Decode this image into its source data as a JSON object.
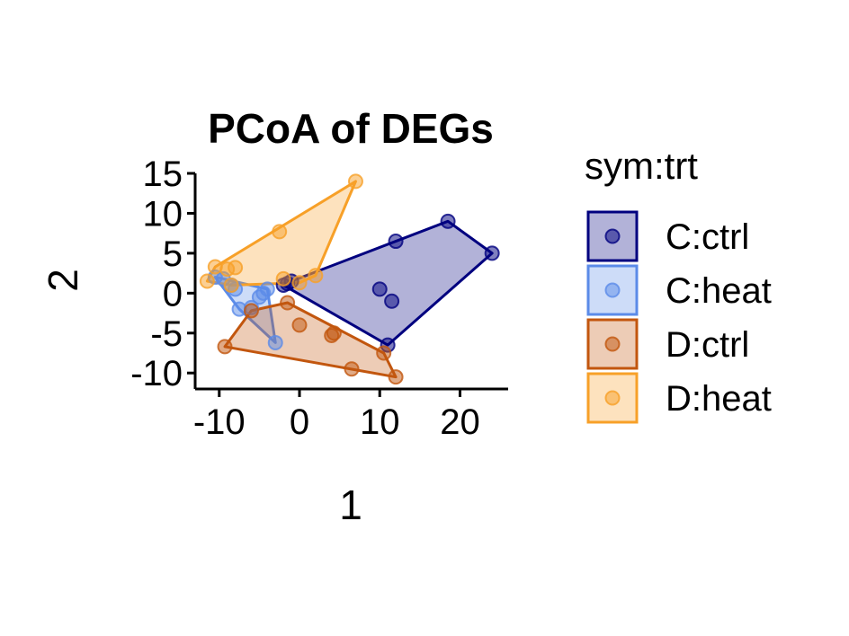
{
  "chart_data": {
    "type": "scatter",
    "title": "PCoA of DEGs",
    "xlabel": "1",
    "ylabel": "2",
    "xlim": [
      -13,
      26
    ],
    "ylim": [
      -12,
      15
    ],
    "xticks": [
      "-10",
      "0",
      "10",
      "20"
    ],
    "yticks": [
      "15",
      "10",
      "5",
      "0",
      "-5",
      "-10"
    ],
    "xtick_values": [
      -10,
      0,
      10,
      20
    ],
    "ytick_values": [
      15,
      10,
      5,
      0,
      -5,
      -10
    ],
    "legend_title": "sym:trt",
    "legend_position": "right",
    "grid": false,
    "series": [
      {
        "name": "C:ctrl",
        "color": "#00007F",
        "x": [
          -2,
          -1.5,
          -1,
          10,
          11.5,
          12,
          11,
          18.5,
          24
        ],
        "y": [
          1,
          1.2,
          1.5,
          0.5,
          -1,
          6.5,
          -6.5,
          9,
          5
        ]
      },
      {
        "name": "C:heat",
        "color": "#5B8BE8",
        "x": [
          -10.5,
          -9.5,
          -8.5,
          -8,
          -7.5,
          -5,
          -4.5,
          -4,
          -3,
          -6
        ],
        "y": [
          2,
          1.8,
          1,
          0.5,
          -2,
          -0.5,
          0,
          0.5,
          -6.2,
          -1.8
        ]
      },
      {
        "name": "D:ctrl",
        "color": "#C2560E",
        "x": [
          -9.3,
          -6,
          -1.5,
          0,
          4,
          4.3,
          6.5,
          10.5,
          12
        ],
        "y": [
          -6.7,
          -2.2,
          -1.2,
          -4,
          -5.3,
          -5,
          -9.5,
          -7.5,
          -10.5
        ]
      },
      {
        "name": "D:heat",
        "color": "#F7A028",
        "x": [
          -11.5,
          -10.5,
          -9,
          -8,
          -8.5,
          -2.5,
          -2,
          0,
          2,
          7
        ],
        "y": [
          1.5,
          3.3,
          3,
          3.2,
          1,
          7.7,
          1.8,
          1.3,
          2.2,
          14
        ]
      }
    ]
  }
}
